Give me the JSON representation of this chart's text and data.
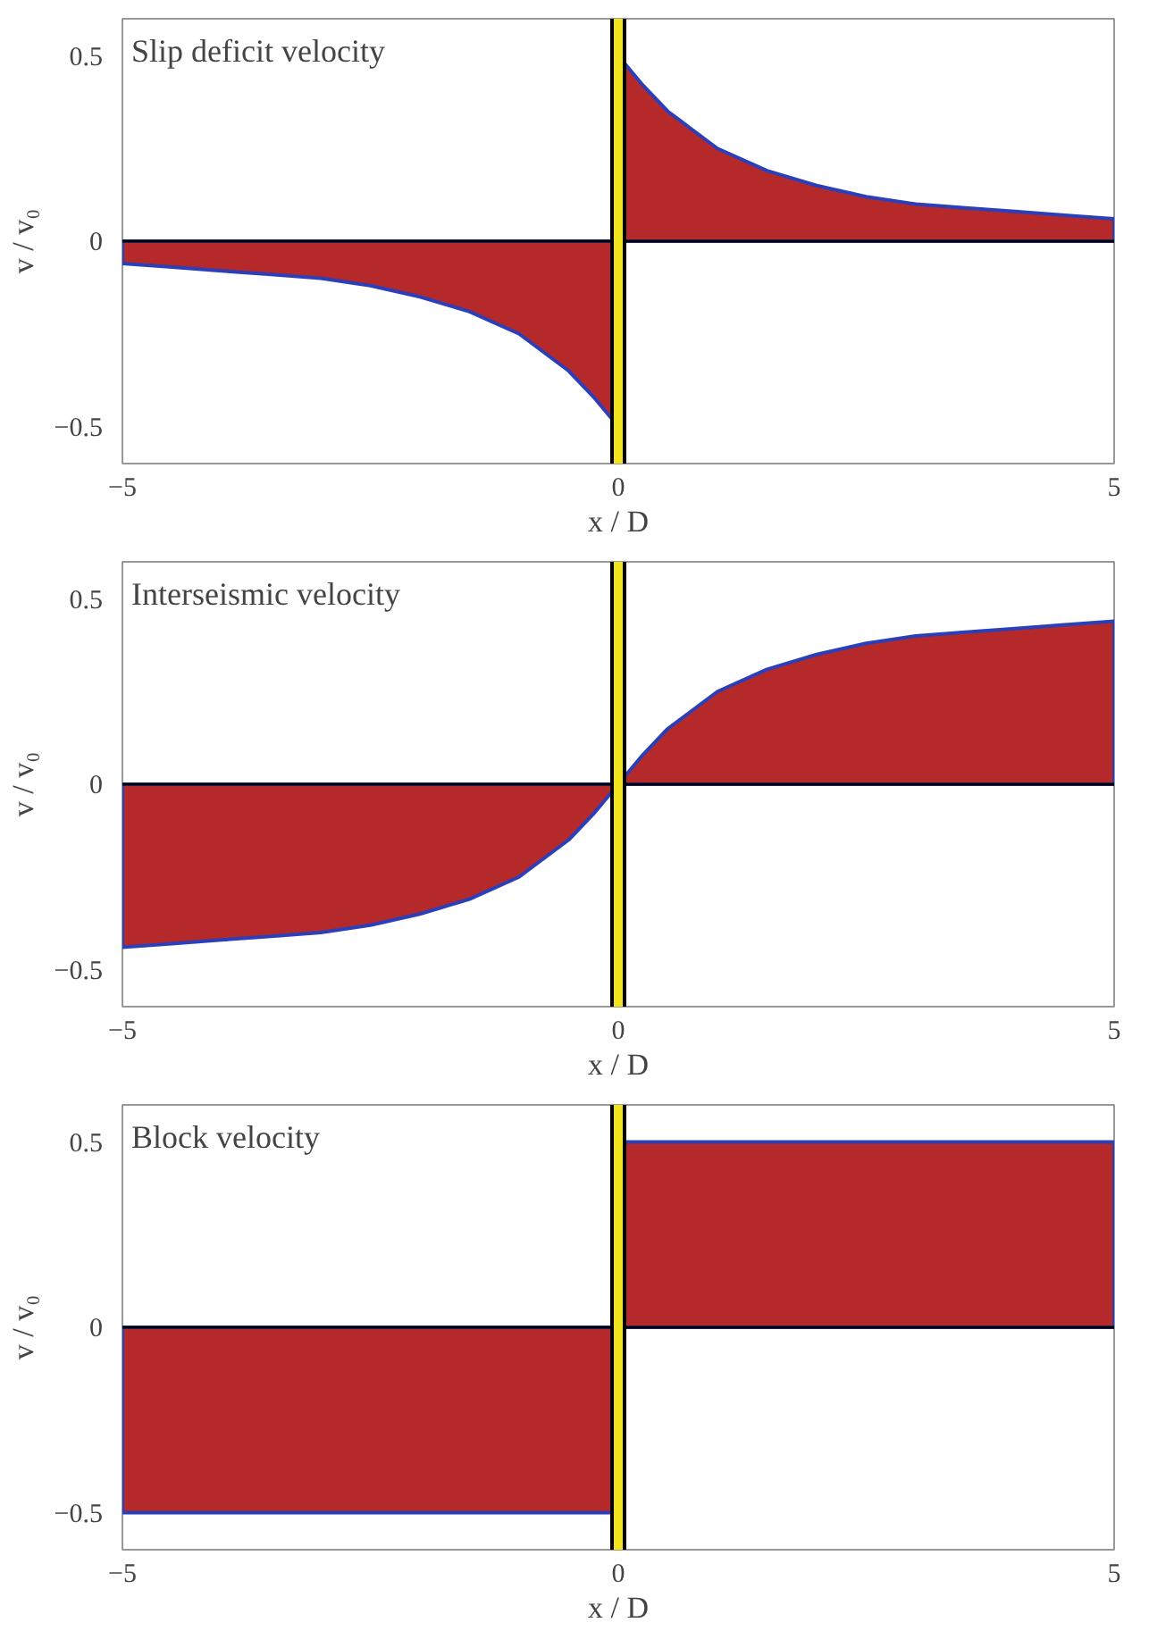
{
  "chart_data": [
    {
      "type": "area",
      "title": "Slip deficit velocity",
      "xlabel": "x / D",
      "ylabel": "v / v₀",
      "xlim": [
        -5,
        5
      ],
      "ylim": [
        -0.6,
        0.6
      ],
      "xticks": [
        -5,
        0,
        5
      ],
      "yticks": [
        -0.5,
        0,
        0.5
      ],
      "grid": false,
      "series": [
        {
          "color": "#b5292a",
          "x": [
            -5,
            -4.5,
            -4,
            -3.5,
            -3,
            -2.5,
            -2,
            -1.5,
            -1,
            -0.75,
            -0.5,
            -0.25,
            0
          ],
          "values": [
            -0.06,
            -0.07,
            -0.08,
            -0.09,
            -0.1,
            -0.12,
            -0.15,
            -0.19,
            -0.25,
            -0.3,
            -0.35,
            -0.42,
            -0.5
          ]
        },
        {
          "color": "#b5292a",
          "x": [
            0,
            0.25,
            0.5,
            0.75,
            1,
            1.5,
            2,
            2.5,
            3,
            3.5,
            4,
            4.5,
            5
          ],
          "values": [
            0.5,
            0.42,
            0.35,
            0.3,
            0.25,
            0.19,
            0.15,
            0.12,
            0.1,
            0.09,
            0.08,
            0.07,
            0.06
          ]
        }
      ],
      "ref_lines": [
        {
          "axis": "x",
          "value": 0,
          "color": "#f2e41c"
        }
      ]
    },
    {
      "type": "area",
      "title": "Interseismic velocity",
      "xlabel": "x / D",
      "ylabel": "v / v₀",
      "xlim": [
        -5,
        5
      ],
      "ylim": [
        -0.6,
        0.6
      ],
      "xticks": [
        -5,
        0,
        5
      ],
      "yticks": [
        -0.5,
        0,
        0.5
      ],
      "grid": false,
      "series": [
        {
          "color": "#b5292a",
          "x": [
            -5,
            -4.5,
            -4,
            -3.5,
            -3,
            -2.5,
            -2,
            -1.5,
            -1,
            -0.75,
            -0.5,
            -0.25,
            0
          ],
          "values": [
            -0.44,
            -0.43,
            -0.42,
            -0.41,
            -0.4,
            -0.38,
            -0.35,
            -0.31,
            -0.25,
            -0.2,
            -0.15,
            -0.08,
            0
          ]
        },
        {
          "color": "#b5292a",
          "x": [
            0,
            0.25,
            0.5,
            0.75,
            1,
            1.5,
            2,
            2.5,
            3,
            3.5,
            4,
            4.5,
            5
          ],
          "values": [
            0,
            0.08,
            0.15,
            0.2,
            0.25,
            0.31,
            0.35,
            0.38,
            0.4,
            0.41,
            0.42,
            0.43,
            0.44
          ]
        }
      ],
      "ref_lines": [
        {
          "axis": "x",
          "value": 0,
          "color": "#f2e41c"
        }
      ]
    },
    {
      "type": "area",
      "title": "Block velocity",
      "xlabel": "x / D",
      "ylabel": "v / v₀",
      "xlim": [
        -5,
        5
      ],
      "ylim": [
        -0.6,
        0.6
      ],
      "xticks": [
        -5,
        0,
        5
      ],
      "yticks": [
        -0.5,
        0,
        0.5
      ],
      "grid": false,
      "series": [
        {
          "color": "#b5292a",
          "x": [
            -5,
            0
          ],
          "values": [
            -0.5,
            -0.5
          ]
        },
        {
          "color": "#b5292a",
          "x": [
            0,
            5
          ],
          "values": [
            0.5,
            0.5
          ]
        }
      ],
      "ref_lines": [
        {
          "axis": "x",
          "value": 0,
          "color": "#f2e41c"
        }
      ]
    }
  ]
}
